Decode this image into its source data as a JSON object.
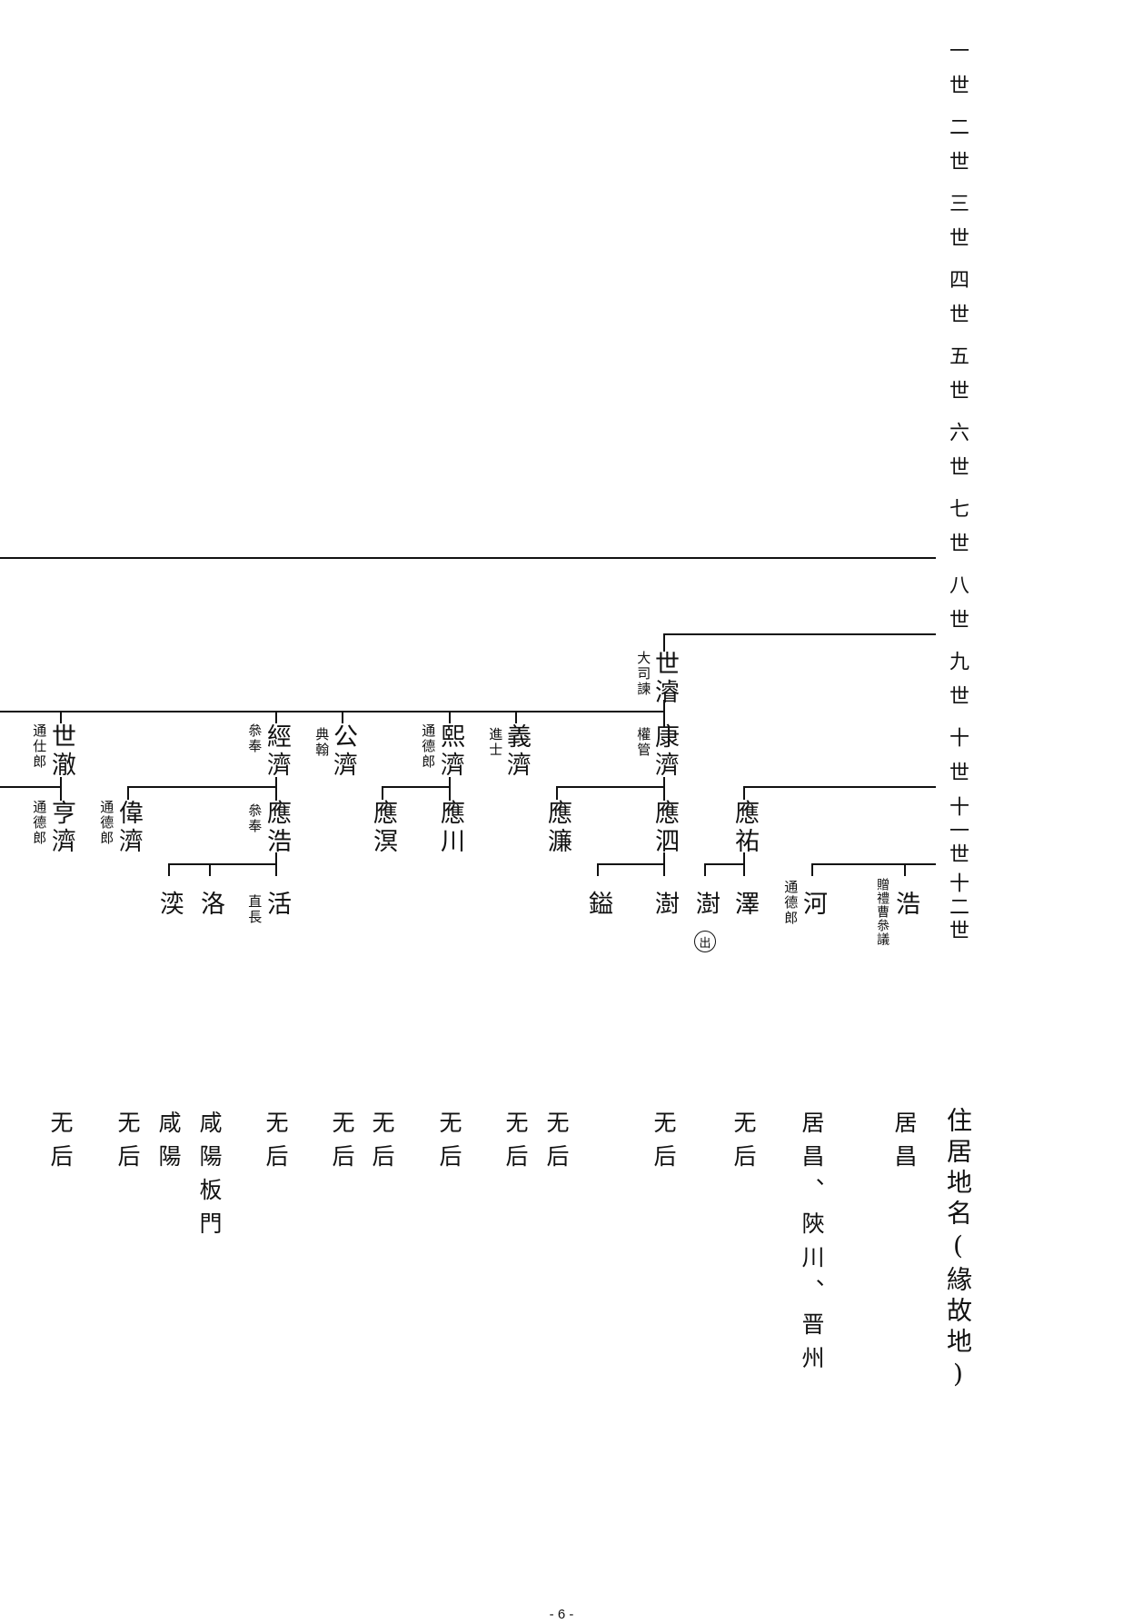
{
  "generations": [
    "一世",
    "二世",
    "三世",
    "四世",
    "五世",
    "六世",
    "七世",
    "八世",
    "九世",
    "十世",
    "十一世",
    "十二世"
  ],
  "header": {
    "residence": "住居地名(緣故地)"
  },
  "gen9": {
    "name": "世濬",
    "title": "大司諫"
  },
  "gen10": [
    {
      "name": "世澈",
      "title": "通仕郎"
    },
    {
      "name": "經濟",
      "title": "叅奉"
    },
    {
      "name": "公濟",
      "title": "典翰"
    },
    {
      "name": "熙濟",
      "title": "通德郎"
    },
    {
      "name": "義濟",
      "title": "進士"
    },
    {
      "name": "康濟",
      "title": "權管"
    }
  ],
  "gen11": [
    {
      "name": "亨濟",
      "title": "通德郎"
    },
    {
      "name": "偉濟",
      "title": "通德郎"
    },
    {
      "name": "應浩",
      "title": "叅奉"
    },
    {
      "name": "應溟",
      "title": ""
    },
    {
      "name": "應川",
      "title": ""
    },
    {
      "name": "應濂",
      "title": ""
    },
    {
      "name": "應泗",
      "title": ""
    },
    {
      "name": "應祐",
      "title": ""
    }
  ],
  "gen12": [
    {
      "name": "湙",
      "title": ""
    },
    {
      "name": "洛",
      "title": ""
    },
    {
      "name": "活",
      "title": "直長"
    },
    {
      "name": "鎰",
      "title": ""
    },
    {
      "name": "澍",
      "title": ""
    },
    {
      "name": "澍",
      "title": "",
      "mark": "出"
    },
    {
      "name": "澤",
      "title": ""
    },
    {
      "name": "河",
      "title": "通德郎"
    },
    {
      "name": "浩",
      "title": "贈禮曹叅議"
    }
  ],
  "residences": [
    "无后",
    "无后",
    "咸陽",
    "咸陽板門",
    "无后",
    "无后",
    "无后",
    "无后",
    "无后",
    "无后",
    "无后",
    "无后",
    "居昌、陜川、晋州",
    "居昌"
  ],
  "page_number": "- 6 -"
}
